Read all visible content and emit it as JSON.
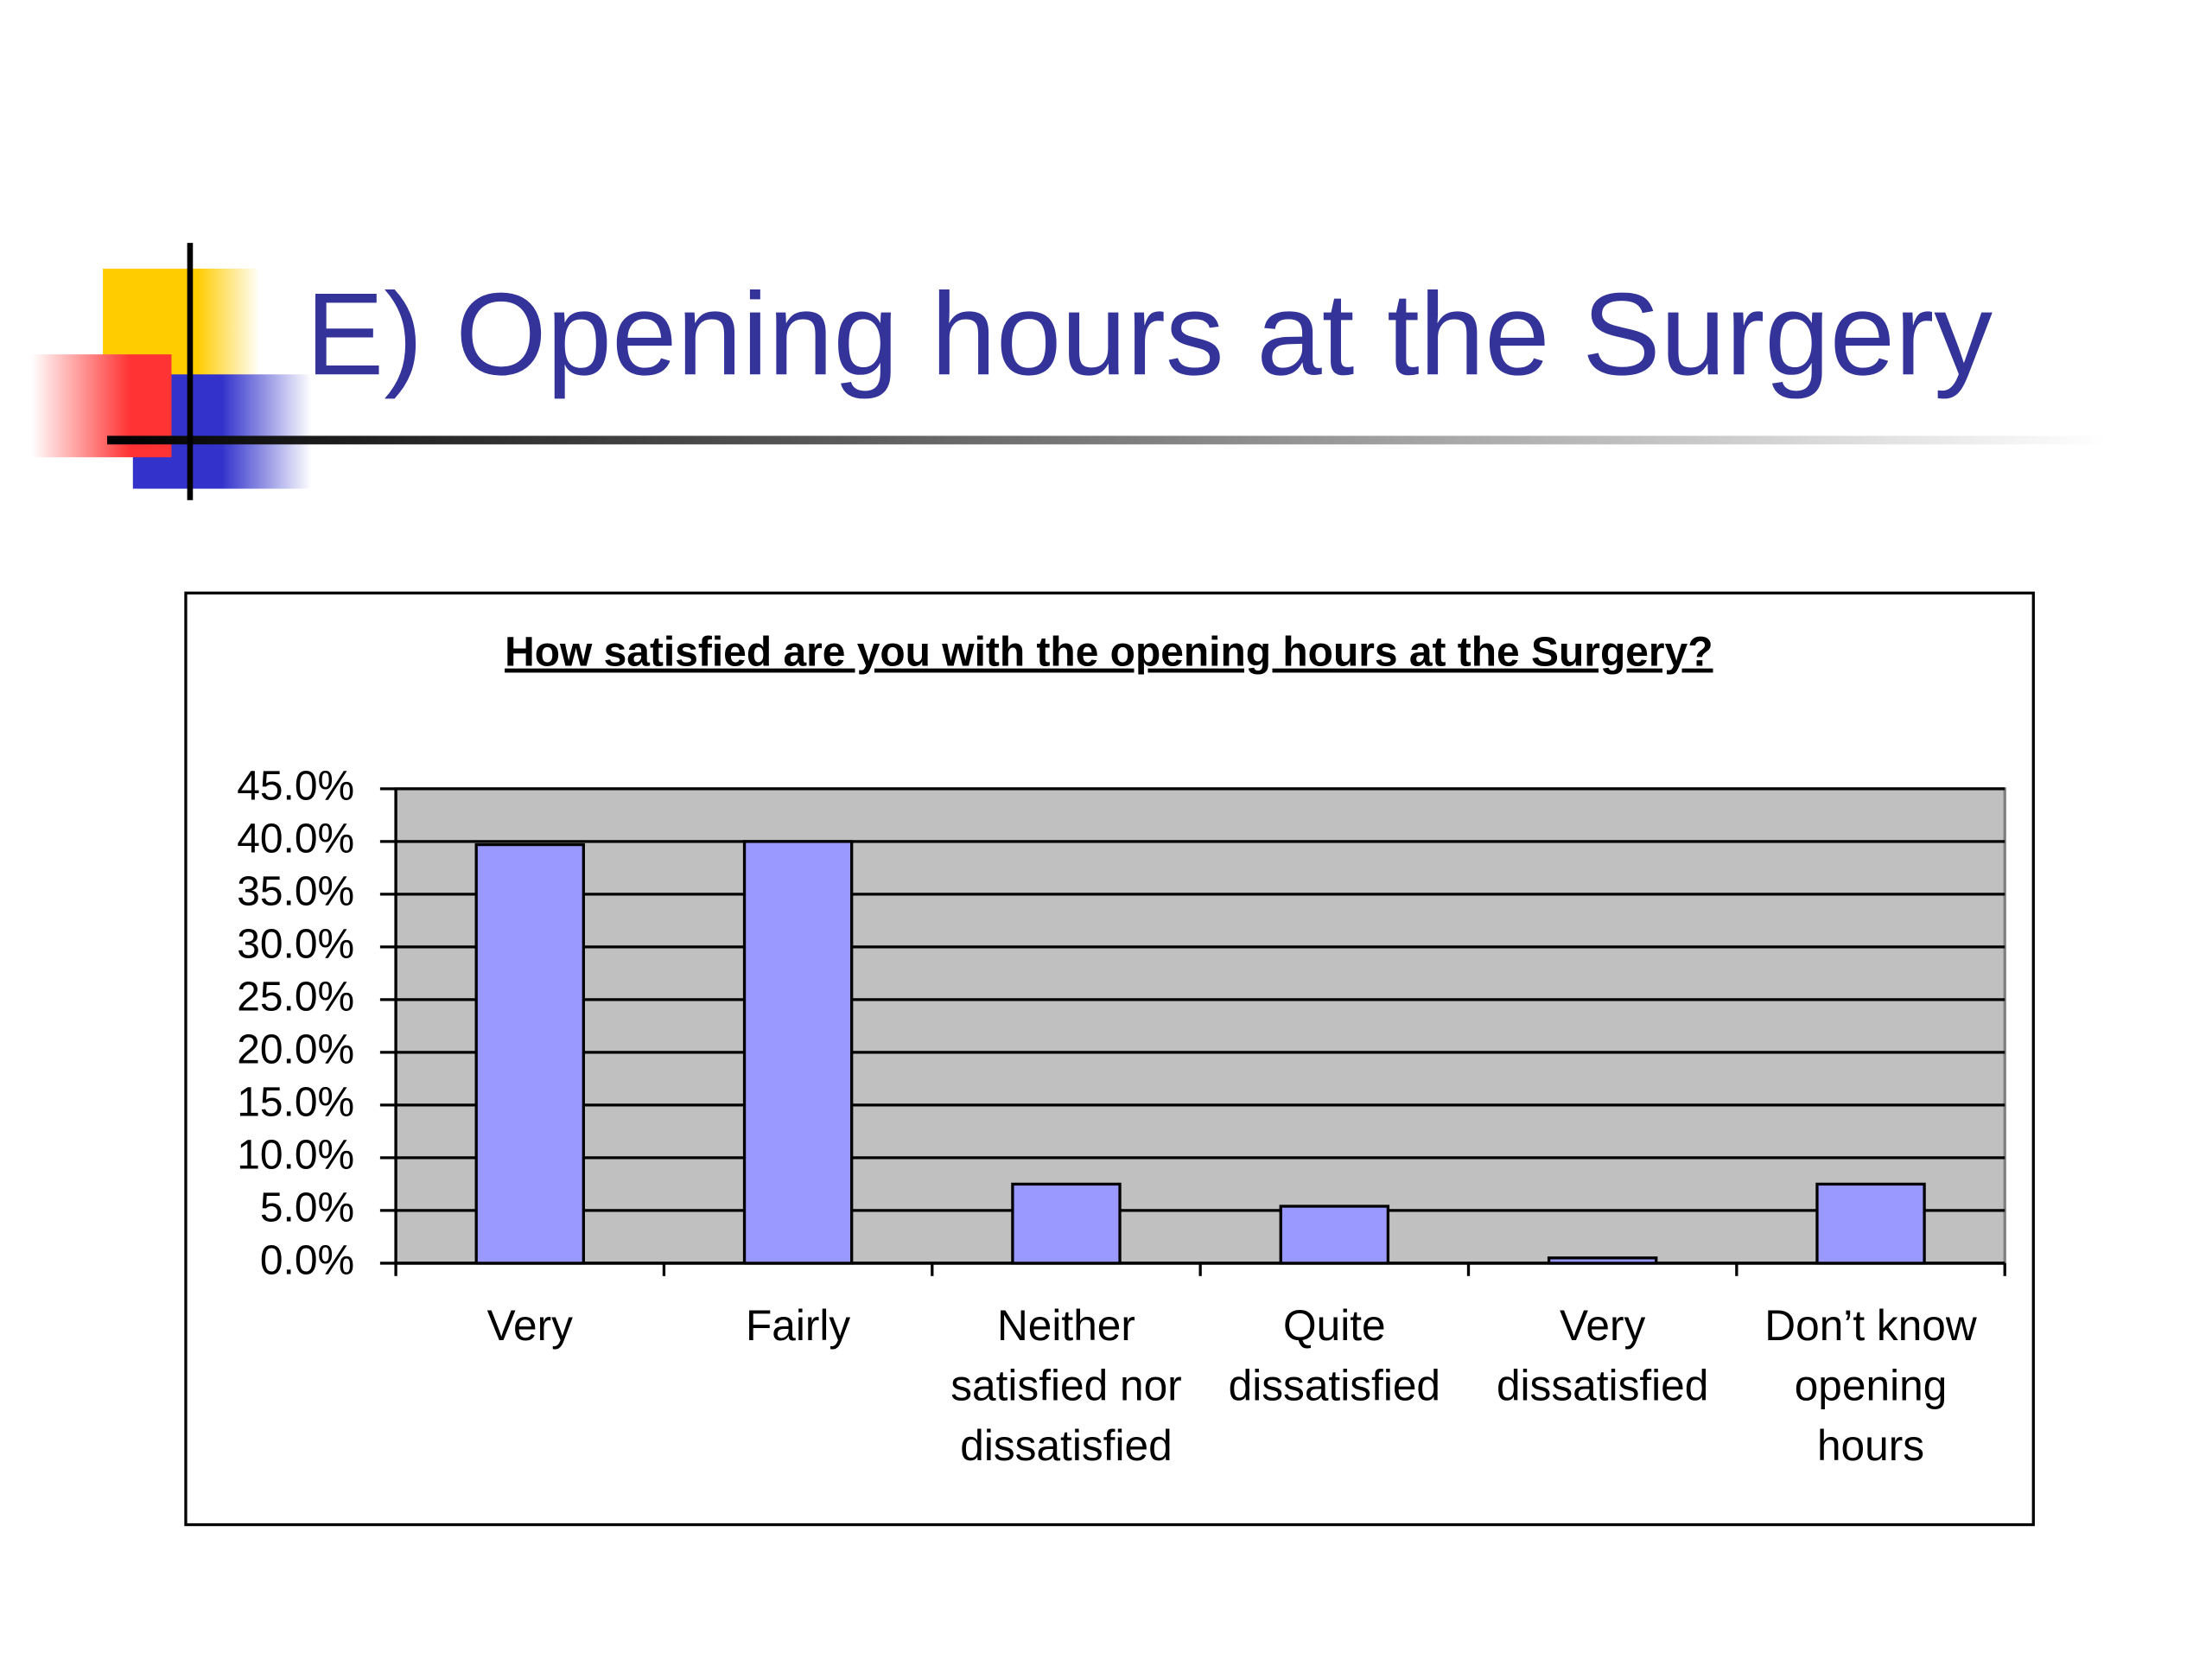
{
  "slide_title": "E) Opening hours at the Surgery",
  "chart_data": {
    "type": "bar",
    "title": "How satisfied are you with the opening hours at the Surgery?",
    "categories": [
      "Very",
      "Fairly",
      "Neither satisfied nor dissatisfied",
      "Quite dissatisfied",
      "Very dissatisfied",
      "Don’t know opening hours"
    ],
    "values": [
      39.7,
      40.0,
      7.5,
      5.4,
      0.5,
      7.5
    ],
    "color": "#9999ff",
    "ylim": [
      0,
      45
    ],
    "yticks": [
      {
        "value": 0,
        "label": "0.0%"
      },
      {
        "value": 5,
        "label": "5.0%"
      },
      {
        "value": 10,
        "label": "10.0%"
      },
      {
        "value": 15,
        "label": "15.0%"
      },
      {
        "value": 20,
        "label": "20.0%"
      },
      {
        "value": 25,
        "label": "25.0%"
      },
      {
        "value": 30,
        "label": "30.0%"
      },
      {
        "value": 35,
        "label": "35.0%"
      },
      {
        "value": 40,
        "label": "40.0%"
      },
      {
        "value": 45,
        "label": "45.0%"
      }
    ],
    "grid": true
  }
}
